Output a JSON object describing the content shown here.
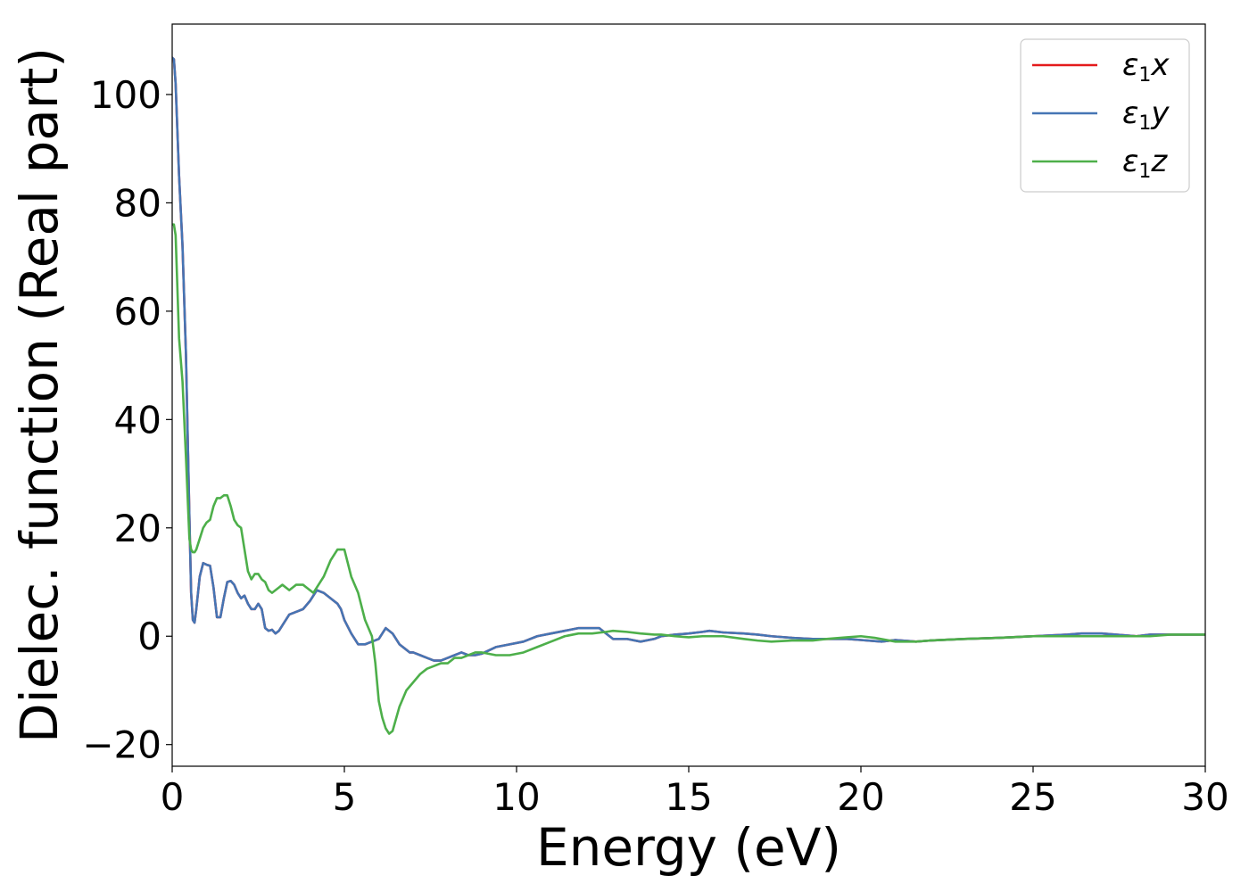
{
  "chart_data": {
    "type": "line",
    "xlabel": "Energy (eV)",
    "ylabel": "Dielec. function (Real part)",
    "xlim": [
      0,
      30
    ],
    "ylim": [
      -24,
      113
    ],
    "xticks": [
      0,
      5,
      10,
      15,
      20,
      25,
      30
    ],
    "xtick_labels": [
      "0",
      "5",
      "10",
      "15",
      "20",
      "25",
      "30"
    ],
    "yticks": [
      -20,
      0,
      20,
      40,
      60,
      80,
      100
    ],
    "ytick_labels": [
      "−20",
      "0",
      "20",
      "40",
      "60",
      "80",
      "100"
    ],
    "grid": false,
    "legend_position": "top-right",
    "series": [
      {
        "name": "ε₁x",
        "symbol": "ε",
        "subscript": "1",
        "component": "x",
        "color": "#e41a1c",
        "x": [
          0,
          0.05,
          0.1,
          0.2,
          0.3,
          0.4,
          0.5,
          0.55,
          0.6,
          0.65,
          0.7,
          0.8,
          0.9,
          1.0,
          1.1,
          1.2,
          1.3,
          1.4,
          1.5,
          1.6,
          1.7,
          1.8,
          1.9,
          2.0,
          2.1,
          2.2,
          2.3,
          2.4,
          2.5,
          2.6,
          2.7,
          2.8,
          2.9,
          3.0,
          3.1,
          3.2,
          3.4,
          3.6,
          3.8,
          4.0,
          4.2,
          4.4,
          4.6,
          4.8,
          4.9,
          5.0,
          5.2,
          5.4,
          5.6,
          5.8,
          6.0,
          6.2,
          6.4,
          6.6,
          6.8,
          6.9,
          7.0,
          7.2,
          7.4,
          7.6,
          7.8,
          8.0,
          8.2,
          8.4,
          8.6,
          8.8,
          9.0,
          9.4,
          9.8,
          10.2,
          10.6,
          11.0,
          11.4,
          11.8,
          12.2,
          12.4,
          12.6,
          12.8,
          13.2,
          13.6,
          14.0,
          14.2,
          14.6,
          15.0,
          15.4,
          15.6,
          16.0,
          16.6,
          17.0,
          17.4,
          18.0,
          18.6,
          19.0,
          19.6,
          20.0,
          20.6,
          21.0,
          21.6,
          22.0,
          23.0,
          24.0,
          25.0,
          26.0,
          26.4,
          27.0,
          27.4,
          28.0,
          28.4,
          29.0,
          30.0
        ],
        "values": [
          106.8,
          106.5,
          102,
          85,
          72,
          52,
          22,
          8,
          3,
          2.5,
          5,
          11,
          13.5,
          13.2,
          13,
          9,
          3.5,
          3.5,
          7,
          10,
          10.2,
          9.5,
          8,
          7,
          7.5,
          6,
          5,
          5,
          6,
          5,
          1.5,
          1,
          1.2,
          0.5,
          1,
          2,
          4,
          4.5,
          5,
          6.5,
          8.5,
          8,
          7,
          6,
          5,
          3,
          0.5,
          -1.5,
          -1.5,
          -1,
          -0.5,
          1.5,
          0.5,
          -1.5,
          -2.5,
          -3,
          -3,
          -3.5,
          -4,
          -4.5,
          -4.5,
          -4,
          -3.5,
          -3,
          -3.5,
          -3.5,
          -3.2,
          -2,
          -1.5,
          -1,
          0,
          0.5,
          1,
          1.5,
          1.5,
          1.5,
          0.5,
          -0.5,
          -0.5,
          -1,
          -0.5,
          0,
          0.3,
          0.5,
          0.8,
          1,
          0.7,
          0.5,
          0.3,
          0,
          -0.3,
          -0.5,
          -0.5,
          -0.5,
          -0.7,
          -1,
          -0.7,
          -1,
          -0.8,
          -0.5,
          -0.3,
          0,
          0.3,
          0.5,
          0.5,
          0.3,
          0,
          0.3,
          0.3,
          0.3
        ]
      },
      {
        "name": "ε₁y",
        "symbol": "ε",
        "subscript": "1",
        "component": "y",
        "color": "#4575b4",
        "x": [
          0,
          0.05,
          0.1,
          0.2,
          0.3,
          0.4,
          0.5,
          0.55,
          0.6,
          0.65,
          0.7,
          0.8,
          0.9,
          1.0,
          1.1,
          1.2,
          1.3,
          1.4,
          1.5,
          1.6,
          1.7,
          1.8,
          1.9,
          2.0,
          2.1,
          2.2,
          2.3,
          2.4,
          2.5,
          2.6,
          2.7,
          2.8,
          2.9,
          3.0,
          3.1,
          3.2,
          3.4,
          3.6,
          3.8,
          4.0,
          4.2,
          4.4,
          4.6,
          4.8,
          4.9,
          5.0,
          5.2,
          5.4,
          5.6,
          5.8,
          6.0,
          6.2,
          6.4,
          6.6,
          6.8,
          6.9,
          7.0,
          7.2,
          7.4,
          7.6,
          7.8,
          8.0,
          8.2,
          8.4,
          8.6,
          8.8,
          9.0,
          9.4,
          9.8,
          10.2,
          10.6,
          11.0,
          11.4,
          11.8,
          12.2,
          12.4,
          12.6,
          12.8,
          13.2,
          13.6,
          14.0,
          14.2,
          14.6,
          15.0,
          15.4,
          15.6,
          16.0,
          16.6,
          17.0,
          17.4,
          18.0,
          18.6,
          19.0,
          19.6,
          20.0,
          20.6,
          21.0,
          21.6,
          22.0,
          23.0,
          24.0,
          25.0,
          26.0,
          26.4,
          27.0,
          27.4,
          28.0,
          28.4,
          29.0,
          30.0
        ],
        "values": [
          106.8,
          106.5,
          102,
          85,
          72,
          52,
          22,
          8,
          3,
          2.5,
          5,
          11,
          13.5,
          13.2,
          13,
          9,
          3.5,
          3.5,
          7,
          10,
          10.2,
          9.5,
          8,
          7,
          7.5,
          6,
          5,
          5,
          6,
          5,
          1.5,
          1,
          1.2,
          0.5,
          1,
          2,
          4,
          4.5,
          5,
          6.5,
          8.5,
          8,
          7,
          6,
          5,
          3,
          0.5,
          -1.5,
          -1.5,
          -1,
          -0.5,
          1.5,
          0.5,
          -1.5,
          -2.5,
          -3,
          -3,
          -3.5,
          -4,
          -4.5,
          -4.5,
          -4,
          -3.5,
          -3,
          -3.5,
          -3.5,
          -3.2,
          -2,
          -1.5,
          -1,
          0,
          0.5,
          1,
          1.5,
          1.5,
          1.5,
          0.5,
          -0.5,
          -0.5,
          -1,
          -0.5,
          0,
          0.3,
          0.5,
          0.8,
          1,
          0.7,
          0.5,
          0.3,
          0,
          -0.3,
          -0.5,
          -0.5,
          -0.5,
          -0.7,
          -1,
          -0.7,
          -1,
          -0.8,
          -0.5,
          -0.3,
          0,
          0.3,
          0.5,
          0.5,
          0.3,
          0,
          0.3,
          0.3,
          0.3
        ]
      },
      {
        "name": "ε₁z",
        "symbol": "ε",
        "subscript": "1",
        "component": "z",
        "color": "#4daf4a",
        "x": [
          0,
          0.05,
          0.1,
          0.2,
          0.3,
          0.4,
          0.5,
          0.55,
          0.6,
          0.65,
          0.7,
          0.8,
          0.9,
          1.0,
          1.1,
          1.2,
          1.3,
          1.4,
          1.5,
          1.6,
          1.7,
          1.8,
          1.9,
          2.0,
          2.1,
          2.2,
          2.3,
          2.4,
          2.5,
          2.6,
          2.7,
          2.8,
          2.9,
          3.0,
          3.1,
          3.2,
          3.4,
          3.5,
          3.6,
          3.7,
          3.8,
          3.9,
          4.0,
          4.1,
          4.2,
          4.4,
          4.6,
          4.8,
          5.0,
          5.2,
          5.4,
          5.6,
          5.8,
          5.9,
          6.0,
          6.1,
          6.2,
          6.3,
          6.4,
          6.6,
          6.8,
          7.0,
          7.2,
          7.4,
          7.6,
          7.8,
          8.0,
          8.2,
          8.4,
          8.6,
          8.8,
          9.0,
          9.4,
          9.8,
          10.2,
          10.6,
          11.0,
          11.4,
          11.8,
          12.2,
          12.6,
          12.8,
          13.2,
          13.6,
          14.0,
          14.2,
          14.6,
          15.0,
          15.4,
          16.0,
          16.6,
          17.0,
          17.4,
          18.0,
          18.6,
          19.0,
          19.6,
          20.0,
          20.4,
          21.0,
          21.6,
          22.0,
          23.0,
          24.0,
          25.0,
          26.0,
          26.4,
          27.0,
          27.4,
          28.0,
          28.4,
          29.0,
          30.0
        ],
        "values": [
          76,
          76,
          74,
          55,
          47,
          33,
          18,
          16,
          15.5,
          15.5,
          16,
          18,
          20,
          21,
          21.5,
          24,
          25.5,
          25.5,
          26,
          26,
          24,
          21.5,
          20.5,
          20,
          16,
          12,
          10.5,
          11.5,
          11.5,
          10.5,
          10,
          8.5,
          8,
          8.5,
          9,
          9.5,
          8.5,
          9,
          9.5,
          9.5,
          9.5,
          9,
          8.5,
          8,
          9,
          11,
          14,
          16,
          16,
          11,
          8,
          3,
          0,
          -5,
          -12,
          -15,
          -17,
          -18,
          -17.5,
          -13,
          -10,
          -8.5,
          -7,
          -6,
          -5.5,
          -5,
          -5,
          -4,
          -4,
          -3.5,
          -3,
          -3,
          -3.5,
          -3.5,
          -3,
          -2,
          -1,
          0,
          0.5,
          0.5,
          0.8,
          1,
          0.8,
          0.5,
          0.3,
          0.3,
          0,
          -0.2,
          0,
          0,
          -0.5,
          -0.8,
          -1,
          -0.8,
          -0.8,
          -0.5,
          -0.2,
          0,
          -0.3,
          -1,
          -1,
          -0.8,
          -0.5,
          -0.3,
          0,
          0,
          0,
          0,
          0,
          0,
          0,
          0.3,
          0.3
        ]
      }
    ]
  }
}
